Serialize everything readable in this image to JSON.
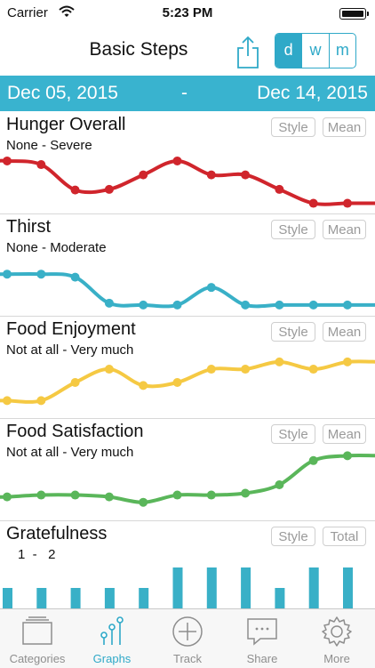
{
  "status_bar": {
    "carrier": "Carrier",
    "time": "5:23 PM"
  },
  "nav": {
    "title": "Basic Steps",
    "segments": [
      "d",
      "w",
      "m"
    ],
    "active_segment": "d"
  },
  "date_range": {
    "from": "Dec 05, 2015",
    "separator": "-",
    "to": "Dec 14, 2015"
  },
  "panels": [
    {
      "title": "Hunger Overall",
      "range": "None - Severe",
      "style_label": "Style",
      "agg_label": "Mean",
      "color": "#d0252c",
      "type": "line",
      "values": [
        0.78,
        0.72,
        0.3,
        0.31,
        0.55,
        0.78,
        0.55,
        0.55,
        0.31,
        0.08,
        0.08
      ]
    },
    {
      "title": "Thirst",
      "range": "None - Moderate",
      "style_label": "Style",
      "agg_label": "Mean",
      "color": "#39b0c7",
      "type": "line",
      "values": [
        0.6,
        0.6,
        0.55,
        0.12,
        0.09,
        0.09,
        0.38,
        0.09,
        0.09,
        0.09,
        0.09
      ]
    },
    {
      "title": "Food Enjoyment",
      "range": "Not at all - Very much",
      "style_label": "Style",
      "agg_label": "Mean",
      "color": "#f5c943",
      "type": "line",
      "values": [
        0.2,
        0.2,
        0.5,
        0.72,
        0.45,
        0.5,
        0.72,
        0.72,
        0.84,
        0.72,
        0.84
      ]
    },
    {
      "title": "Food Satisfaction",
      "range": "Not at all - Very much",
      "style_label": "Style",
      "agg_label": "Mean",
      "color": "#5ab65a",
      "type": "line",
      "values": [
        0.3,
        0.33,
        0.33,
        0.3,
        0.21,
        0.33,
        0.33,
        0.36,
        0.5,
        0.9,
        0.98
      ]
    },
    {
      "title": "Gratefulness",
      "range": "1  -   2",
      "style_label": "Style",
      "agg_label": "Total",
      "color": "#39b0c7",
      "type": "bar",
      "values": [
        1,
        1,
        1,
        1,
        1,
        2,
        2,
        2,
        1,
        2,
        2
      ]
    }
  ],
  "tabs": [
    {
      "label": "Categories",
      "icon": "categories-icon"
    },
    {
      "label": "Graphs",
      "icon": "graphs-icon",
      "active": true
    },
    {
      "label": "Track",
      "icon": "track-plus-icon"
    },
    {
      "label": "Share",
      "icon": "share-chat-icon"
    },
    {
      "label": "More",
      "icon": "gear-icon"
    }
  ]
}
